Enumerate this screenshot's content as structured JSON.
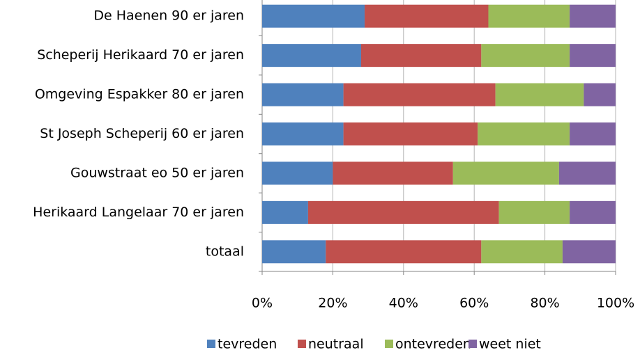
{
  "chart_data": {
    "type": "stacked-barh",
    "categories": [
      "De Haenen 90 er jaren",
      "Scheperij Herikaard 70 er jaren",
      "Omgeving Espakker 80 er jaren",
      "St Joseph Scheperij 60 er jaren",
      "Gouwstraat eo 50 er jaren",
      "Herikaard Langelaar 70 er jaren",
      "totaal"
    ],
    "series": [
      {
        "name": "tevreden",
        "color": "#4f81bd",
        "values": [
          29,
          28,
          23,
          23,
          20,
          13,
          18
        ]
      },
      {
        "name": "neutraal",
        "color": "#c0504d",
        "values": [
          35,
          34,
          43,
          38,
          34,
          54,
          44
        ]
      },
      {
        "name": "ontevreden",
        "color": "#9bbb59",
        "values": [
          23,
          25,
          25,
          26,
          30,
          20,
          23
        ]
      },
      {
        "name": "weet niet",
        "color": "#8064a2",
        "values": [
          13,
          13,
          9,
          13,
          16,
          13,
          15
        ]
      }
    ],
    "xlim": [
      0,
      100
    ],
    "xticks": [
      {
        "value": 0,
        "label": "0%"
      },
      {
        "value": 20,
        "label": "20%"
      },
      {
        "value": 40,
        "label": "40%"
      },
      {
        "value": 60,
        "label": "60%"
      },
      {
        "value": 80,
        "label": "80%"
      },
      {
        "value": 100,
        "label": "100%"
      }
    ],
    "grid": true,
    "legend": "bottom"
  }
}
